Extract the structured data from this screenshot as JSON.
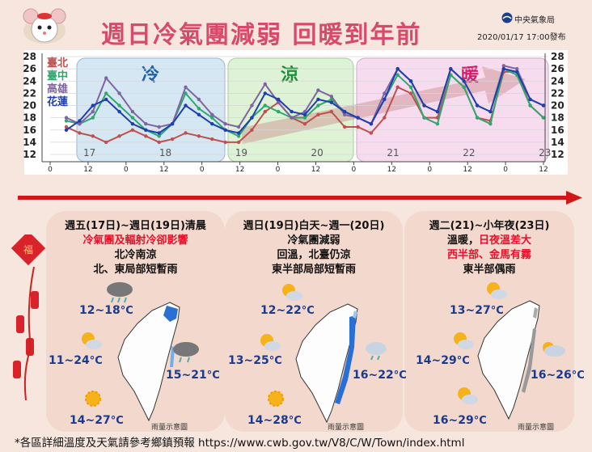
{
  "header": {
    "title": "週日冷氣團減弱 回暖到年前",
    "agency": "中央氣象局",
    "issued": "2020/01/17  17:00發布"
  },
  "chart_data": {
    "type": "line",
    "x_tick_labels": [
      "0",
      "12",
      "0",
      "12",
      "0",
      "12",
      "0",
      "12",
      "0",
      "12",
      "0",
      "12",
      "0",
      "12"
    ],
    "day_labels": [
      "17",
      "18",
      "19",
      "20",
      "21",
      "22",
      "23"
    ],
    "ylim": [
      12,
      28
    ],
    "y_ticks": [
      12,
      14,
      16,
      18,
      20,
      22,
      24,
      26,
      28
    ],
    "grid": true,
    "period_labels": [
      "冷",
      "涼",
      "暖"
    ],
    "series": [
      {
        "name": "臺北",
        "color": "#c0504d",
        "values": [
          16.5,
          15.5,
          15,
          14,
          15,
          16,
          15,
          14,
          14.5,
          15.5,
          15,
          14.5,
          14,
          14,
          16,
          19,
          20.5,
          18,
          17,
          18.5,
          19,
          16.5,
          16.5,
          15.5,
          18,
          23,
          22,
          18,
          18,
          25,
          23,
          18,
          17.5,
          25.5,
          25.5,
          20,
          18
        ]
      },
      {
        "name": "臺中",
        "color": "#2fa86f",
        "values": [
          17.5,
          17,
          18,
          22,
          20,
          18,
          16,
          15,
          17,
          22,
          19.5,
          18,
          16,
          15,
          18,
          20,
          19,
          18,
          18,
          20,
          21,
          19,
          18,
          17,
          21,
          25,
          23,
          18,
          17,
          25,
          23,
          18,
          17,
          26,
          25,
          20,
          18
        ]
      },
      {
        "name": "高雄",
        "color": "#8064a2",
        "values": [
          18,
          17,
          19,
          24.5,
          22,
          19,
          17,
          16.5,
          17,
          23,
          21,
          18.5,
          17,
          16.5,
          20,
          23.5,
          20.5,
          18,
          19,
          22.5,
          21.5,
          18.5,
          18,
          17,
          22,
          26,
          24,
          20,
          19,
          26,
          24,
          20,
          19,
          26.5,
          26,
          21,
          20
        ]
      },
      {
        "name": "花蓮",
        "color": "#1f3fae",
        "values": [
          16,
          17.5,
          20,
          21,
          19,
          17,
          16,
          15.5,
          17,
          20,
          18.5,
          17,
          16,
          15.5,
          18,
          22,
          21,
          19,
          18.5,
          21,
          20.5,
          19,
          18,
          17,
          21,
          26,
          24,
          20,
          19,
          26,
          24,
          20,
          19,
          26,
          25.5,
          21,
          20
        ]
      }
    ]
  },
  "panels": [
    {
      "lines": [
        "週五(17日)~週日(19日)清晨",
        "冷氣團及輻射冷卻影響",
        "北冷南涼",
        "北、東局部短暫雨"
      ],
      "temps": [
        "12~18",
        "11~24",
        "15~21",
        "14~27"
      ],
      "unit": "°C",
      "map_label": "雨量示意圖"
    },
    {
      "lines": [
        "週日(19日)白天~週一(20日)",
        "冷氣團減弱",
        "回溫，北臺仍涼",
        "東半部局部短暫雨"
      ],
      "temps": [
        "12~22",
        "13~25",
        "16~22",
        "14~28"
      ],
      "unit": "°C",
      "map_label": "雨量示意圖"
    },
    {
      "lines": [
        "週二(21)~小年夜(23日)",
        "溫暖，",
        "日夜溫差大",
        "西半部、金馬有霧",
        "東半部偶雨"
      ],
      "temps": [
        "13~27",
        "14~29",
        "16~26",
        "16~29"
      ],
      "unit": "°C",
      "map_label": "雨量示意圖"
    }
  ],
  "footer": "*各區詳細溫度及天氣請參考鄉鎮預報  https://www.cwb.gov.tw/V8/C/W/Town/index.html",
  "colors": {
    "title": "#d94a6a",
    "accent_red": "#e8102a",
    "temp": "#1b3a8c",
    "background": "#f6e6de"
  }
}
